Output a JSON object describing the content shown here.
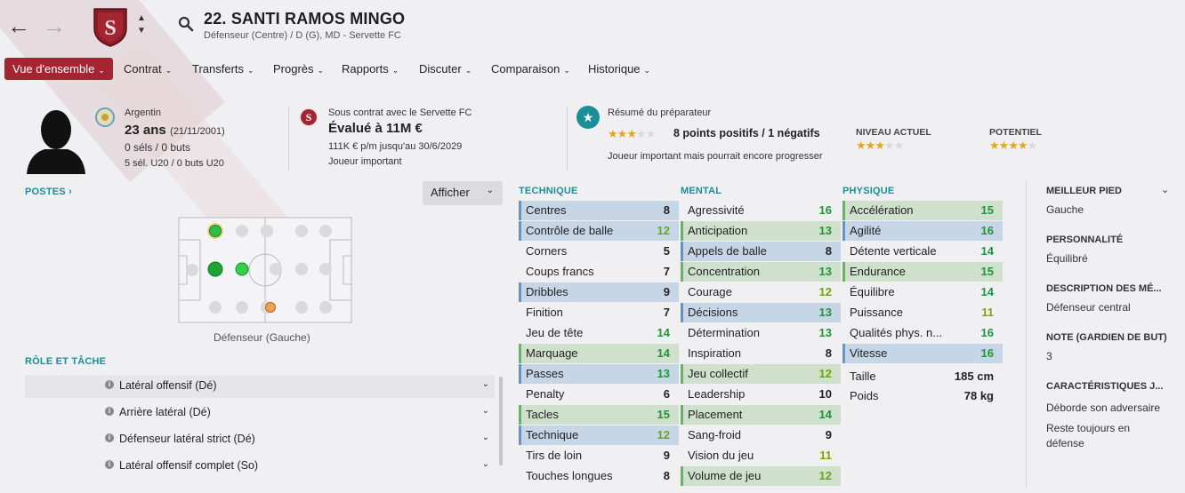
{
  "header": {
    "title": "22. SANTI RAMOS MINGO",
    "subtitle": "Défenseur (Centre) / D (G), MD - Servette FC"
  },
  "tabs": [
    {
      "label": "Vue d'ensemble"
    },
    {
      "label": "Contrat"
    },
    {
      "label": "Transferts"
    },
    {
      "label": "Progrès"
    },
    {
      "label": "Rapports"
    },
    {
      "label": "Discuter"
    },
    {
      "label": "Comparaison"
    },
    {
      "label": "Historique"
    }
  ],
  "profile": {
    "nation": "Argentin",
    "age": "23 ans",
    "dob": "(21/11/2001)",
    "caps": "0 séls / 0 buts",
    "u20": "5 sél. U20 / 0 buts U20"
  },
  "contract": {
    "club_line": "Sous contrat avec le Servette FC",
    "value": "Évalué à 11M €",
    "wage": "111K € p/m jusqu'au 30/6/2029",
    "status": "Joueur important"
  },
  "coach": {
    "title": "Résumé du préparateur",
    "points": "8 points positifs / 1 négatifs",
    "summary": "Joueur important mais pourrait encore progresser",
    "current_label": "NIVEAU ACTUEL",
    "potential_label": "POTENTIEL",
    "summary_stars": 3,
    "current_stars": 3,
    "potential_stars": 4
  },
  "positions": {
    "header": "POSTES",
    "show_button": "Afficher",
    "caption": "Défenseur (Gauche)"
  },
  "roles": {
    "header": "RÔLE ET TÂCHE",
    "items": [
      "Latéral offensif (Dé)",
      "Arrière latéral (Dé)",
      "Défenseur latéral strict (Dé)",
      "Latéral offensif complet (So)"
    ]
  },
  "technique": {
    "header": "TECHNIQUE",
    "rows": [
      {
        "label": "Centres",
        "value": "8",
        "hl": "blue",
        "col": "black"
      },
      {
        "label": "Contrôle de balle",
        "value": "12",
        "hl": "blue",
        "col": "lgreen"
      },
      {
        "label": "Corners",
        "value": "5",
        "hl": "",
        "col": "black"
      },
      {
        "label": "Coups francs",
        "value": "7",
        "hl": "",
        "col": "black"
      },
      {
        "label": "Dribbles",
        "value": "9",
        "hl": "blue",
        "col": "black"
      },
      {
        "label": "Finition",
        "value": "7",
        "hl": "",
        "col": "black"
      },
      {
        "label": "Jeu de tête",
        "value": "14",
        "hl": "",
        "col": "green"
      },
      {
        "label": "Marquage",
        "value": "14",
        "hl": "green",
        "col": "green"
      },
      {
        "label": "Passes",
        "value": "13",
        "hl": "blue",
        "col": "green"
      },
      {
        "label": "Penalty",
        "value": "6",
        "hl": "",
        "col": "black"
      },
      {
        "label": "Tacles",
        "value": "15",
        "hl": "green",
        "col": "green"
      },
      {
        "label": "Technique",
        "value": "12",
        "hl": "blue",
        "col": "lgreen"
      },
      {
        "label": "Tirs de loin",
        "value": "9",
        "hl": "",
        "col": "black"
      },
      {
        "label": "Touches longues",
        "value": "8",
        "hl": "",
        "col": "black"
      }
    ]
  },
  "mental": {
    "header": "MENTAL",
    "rows": [
      {
        "label": "Agressivité",
        "value": "16",
        "hl": "",
        "col": "green"
      },
      {
        "label": "Anticipation",
        "value": "13",
        "hl": "green",
        "col": "green"
      },
      {
        "label": "Appels de balle",
        "value": "8",
        "hl": "blue",
        "col": "black"
      },
      {
        "label": "Concentration",
        "value": "13",
        "hl": "green",
        "col": "green"
      },
      {
        "label": "Courage",
        "value": "12",
        "hl": "",
        "col": "lgreen"
      },
      {
        "label": "Décisions",
        "value": "13",
        "hl": "blue",
        "col": "green"
      },
      {
        "label": "Détermination",
        "value": "13",
        "hl": "",
        "col": "green"
      },
      {
        "label": "Inspiration",
        "value": "8",
        "hl": "",
        "col": "black"
      },
      {
        "label": "Jeu collectif",
        "value": "12",
        "hl": "green",
        "col": "lgreen"
      },
      {
        "label": "Leadership",
        "value": "10",
        "hl": "",
        "col": "black"
      },
      {
        "label": "Placement",
        "value": "14",
        "hl": "green",
        "col": "green"
      },
      {
        "label": "Sang-froid",
        "value": "9",
        "hl": "",
        "col": "black"
      },
      {
        "label": "Vision du jeu",
        "value": "11",
        "hl": "",
        "col": "olive"
      },
      {
        "label": "Volume de jeu",
        "value": "12",
        "hl": "green",
        "col": "lgreen"
      }
    ]
  },
  "physique": {
    "header": "PHYSIQUE",
    "rows": [
      {
        "label": "Accélération",
        "value": "15",
        "hl": "green",
        "col": "green"
      },
      {
        "label": "Agilité",
        "value": "16",
        "hl": "blue",
        "col": "green"
      },
      {
        "label": "Détente verticale",
        "value": "14",
        "hl": "",
        "col": "green"
      },
      {
        "label": "Endurance",
        "value": "15",
        "hl": "green",
        "col": "green"
      },
      {
        "label": "Équilibre",
        "value": "14",
        "hl": "",
        "col": "green"
      },
      {
        "label": "Puissance",
        "value": "11",
        "hl": "",
        "col": "olive"
      },
      {
        "label": "Qualités phys. n...",
        "value": "16",
        "hl": "",
        "col": "green"
      },
      {
        "label": "Vitesse",
        "value": "16",
        "hl": "blue",
        "col": "green"
      }
    ],
    "height_label": "Taille",
    "height": "185 cm",
    "weight_label": "Poids",
    "weight": "78 kg"
  },
  "side": {
    "foot_label": "MEILLEUR PIED",
    "foot": "Gauche",
    "personality_label": "PERSONNALITÉ",
    "personality": "Équilibré",
    "description_label": "DESCRIPTION DES MÉ...",
    "description": "Défenseur central",
    "gk_label": "NOTE (GARDIEN DE BUT)",
    "gk": "3",
    "traits_label": "CARACTÉRISTIQUES J...",
    "trait1": "Déborde son adversaire",
    "trait2": "Reste toujours en défense"
  },
  "colors": {
    "accent": "#a32532",
    "teal": "#1a8f97",
    "value_green": "#1f9438",
    "value_lightgreen": "#6aa51a",
    "highlight_blue": "#c6d6e7",
    "highlight_green": "#cfe0cd"
  }
}
